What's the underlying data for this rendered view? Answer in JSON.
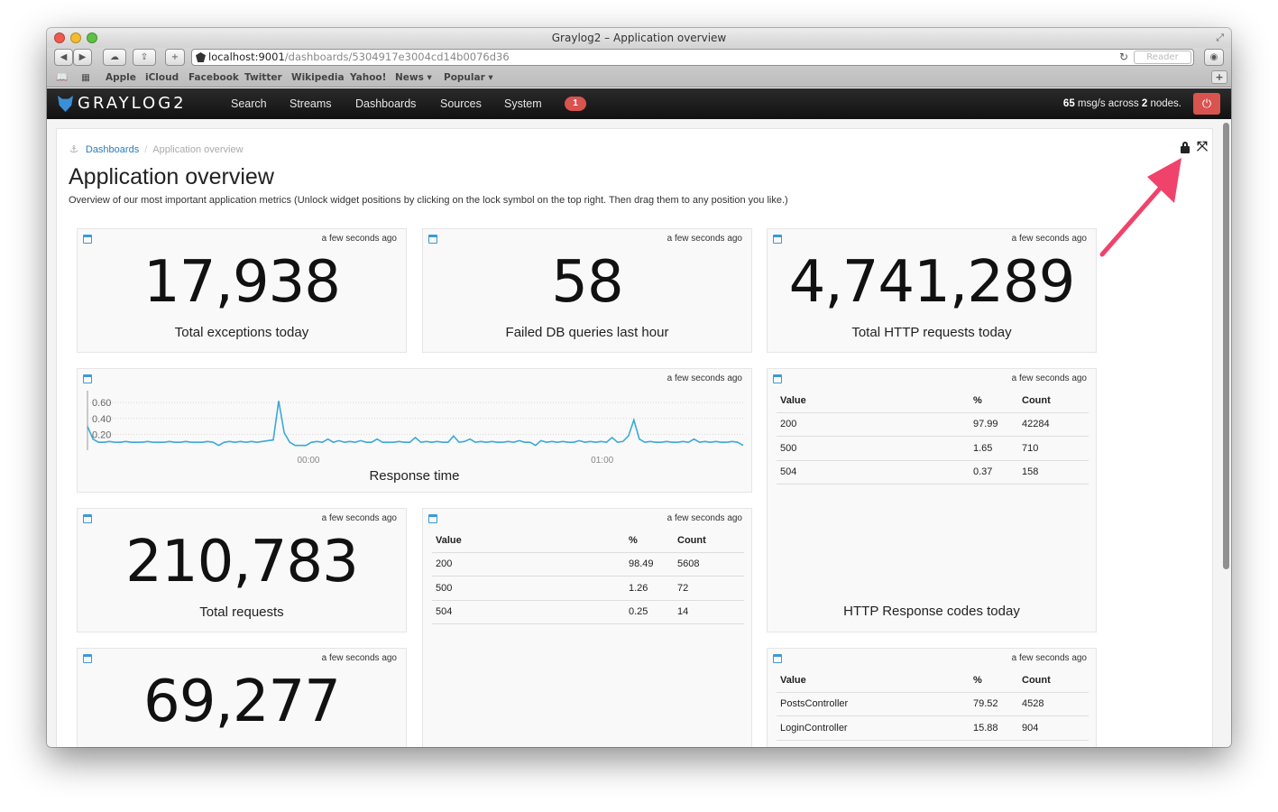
{
  "browser": {
    "window_title": "Graylog2 – Application overview",
    "url_host": "localhost:9001",
    "url_path": "/dashboards/5304917e3004cd14b0076d36",
    "reader_label": "Reader",
    "bookmarks": [
      "Apple",
      "iCloud",
      "Facebook",
      "Twitter",
      "Wikipedia",
      "Yahoo!",
      "News ▾",
      "Popular ▾"
    ]
  },
  "nav": {
    "logo": "GRAYLOG2",
    "items": [
      "Search",
      "Streams",
      "Dashboards",
      "Sources",
      "System"
    ],
    "badge": "1",
    "throughput_rate": "65",
    "throughput_mid": " msg/s across ",
    "throughput_nodes": "2",
    "throughput_suffix": " nodes."
  },
  "breadcrumb": {
    "root": "Dashboards",
    "current": "Application overview"
  },
  "page": {
    "title": "Application overview",
    "description": "Overview of our most important application metrics (Unlock widget positions by clicking on the lock symbol on the top right. Then drag them to any position you like.)"
  },
  "widgets": {
    "exceptions": {
      "time": "a few seconds ago",
      "value": "17,938",
      "label": "Total exceptions today"
    },
    "failed_db": {
      "time": "a few seconds ago",
      "value": "58",
      "label": "Failed DB queries last hour"
    },
    "http_total": {
      "time": "a few seconds ago",
      "value": "4,741,289",
      "label": "Total HTTP requests today"
    },
    "response_time": {
      "time": "a few seconds ago",
      "label": "Response time"
    },
    "http_codes_today": {
      "time": "a few seconds ago",
      "label": "HTTP Response codes today",
      "headers": [
        "Value",
        "%",
        "Count"
      ],
      "rows": [
        [
          "200",
          "97.99",
          "42284"
        ],
        [
          "500",
          "1.65",
          "710"
        ],
        [
          "504",
          "0.37",
          "158"
        ]
      ]
    },
    "total_requests": {
      "time": "a few seconds ago",
      "value": "210,783",
      "label": "Total requests"
    },
    "codes_small": {
      "time": "a few seconds ago",
      "headers": [
        "Value",
        "%",
        "Count"
      ],
      "rows": [
        [
          "200",
          "98.49",
          "5608"
        ],
        [
          "500",
          "1.26",
          "72"
        ],
        [
          "504",
          "0.25",
          "14"
        ]
      ]
    },
    "partial_number": {
      "time": "a few seconds ago",
      "value": "69,277"
    },
    "controllers": {
      "time": "a few seconds ago",
      "headers": [
        "Value",
        "%",
        "Count"
      ],
      "rows": [
        [
          "PostsController",
          "79.52",
          "4528"
        ],
        [
          "LoginController",
          "15.88",
          "904"
        ]
      ]
    }
  },
  "chart_data": {
    "type": "line",
    "x_tick_labels": [
      "00:00",
      "01:00"
    ],
    "y_tick_labels": [
      "0.60",
      "0.40",
      "0.20"
    ],
    "ylim": [
      0,
      0.75
    ],
    "values": [
      0.3,
      0.14,
      0.1,
      0.1,
      0.11,
      0.1,
      0.1,
      0.11,
      0.1,
      0.1,
      0.1,
      0.11,
      0.1,
      0.1,
      0.1,
      0.11,
      0.1,
      0.1,
      0.11,
      0.1,
      0.1,
      0.1,
      0.11,
      0.1,
      0.06,
      0.1,
      0.11,
      0.1,
      0.11,
      0.1,
      0.11,
      0.1,
      0.11,
      0.12,
      0.13,
      0.62,
      0.22,
      0.1,
      0.06,
      0.06,
      0.06,
      0.1,
      0.11,
      0.1,
      0.14,
      0.1,
      0.12,
      0.1,
      0.11,
      0.1,
      0.12,
      0.1,
      0.1,
      0.14,
      0.1,
      0.1,
      0.1,
      0.11,
      0.1,
      0.1,
      0.16,
      0.1,
      0.11,
      0.1,
      0.11,
      0.1,
      0.1,
      0.18,
      0.1,
      0.11,
      0.14,
      0.1,
      0.11,
      0.1,
      0.11,
      0.1,
      0.1,
      0.11,
      0.1,
      0.12,
      0.1,
      0.1,
      0.06,
      0.12,
      0.1,
      0.11,
      0.1,
      0.11,
      0.1,
      0.1,
      0.12,
      0.1,
      0.11,
      0.1,
      0.11,
      0.1,
      0.16,
      0.1,
      0.11,
      0.18,
      0.38,
      0.14,
      0.1,
      0.11,
      0.1,
      0.1,
      0.11,
      0.1,
      0.1,
      0.11,
      0.1,
      0.14,
      0.1,
      0.11,
      0.1,
      0.11,
      0.1,
      0.1,
      0.11,
      0.1,
      0.06
    ],
    "colors": {
      "line": "#3ba9d8",
      "grid": "#d8d8d8"
    }
  },
  "colors": {
    "accent": "#3b9ad9",
    "link": "#2a7bbd",
    "danger": "#d9534f",
    "annotation_arrow": "#f0436b"
  }
}
